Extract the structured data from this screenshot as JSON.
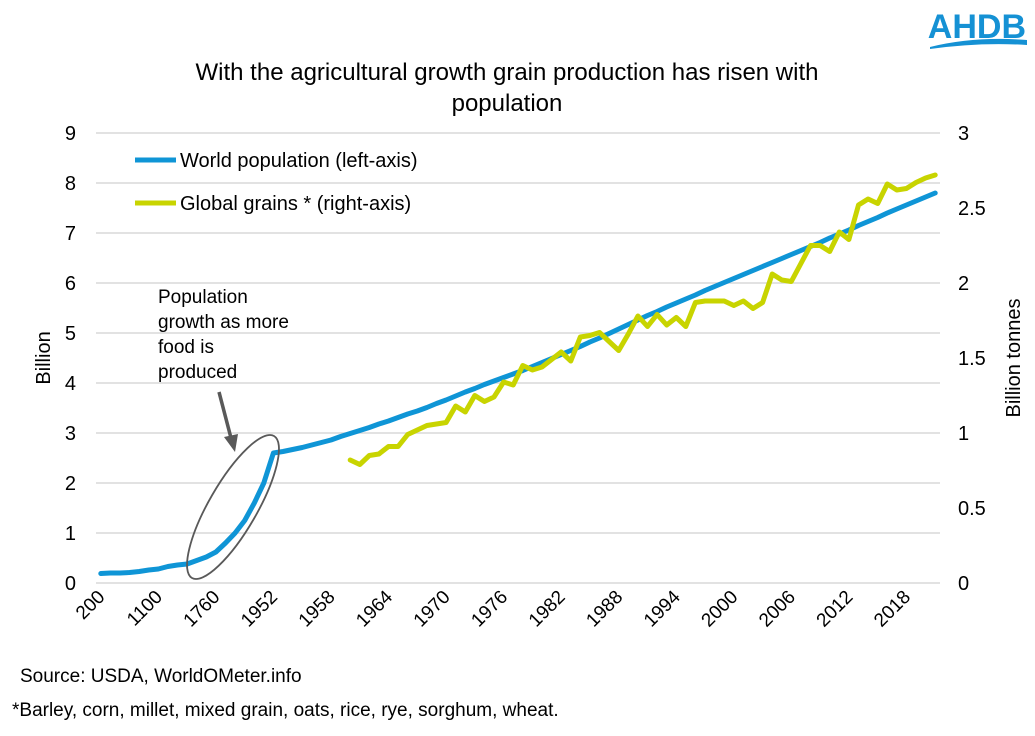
{
  "logo": {
    "text": "AHDB",
    "color": "#1591d4"
  },
  "chart_data": {
    "type": "line",
    "title": "With the agricultural growth grain production has risen with population",
    "title_lines": [
      "With the agricultural growth grain production has risen with",
      "population"
    ],
    "ylabel": "Billion",
    "y2label": "Billion tonnes",
    "ylim": [
      0,
      9
    ],
    "y2lim": [
      0,
      3
    ],
    "yticks": [
      "0",
      "1",
      "2",
      "3",
      "4",
      "5",
      "6",
      "7",
      "8",
      "9"
    ],
    "y2ticks": [
      "0",
      "0.5",
      "1",
      "1.5",
      "2",
      "2.5",
      "3"
    ],
    "grid": true,
    "legend_position": "top-left",
    "categories": [
      "200",
      "400",
      "500",
      "600",
      "700",
      "900",
      "1100",
      "1200",
      "1300",
      "1400",
      "1500",
      "1600",
      "1760",
      "1800",
      "1850",
      "1900",
      "1927",
      "1940",
      "1952",
      "1953",
      "1954",
      "1955",
      "1956",
      "1957",
      "1958",
      "1959",
      "1960",
      "1961",
      "1962",
      "1963",
      "1964",
      "1965",
      "1966",
      "1967",
      "1968",
      "1969",
      "1970",
      "1971",
      "1972",
      "1973",
      "1974",
      "1975",
      "1976",
      "1977",
      "1978",
      "1979",
      "1980",
      "1981",
      "1982",
      "1983",
      "1984",
      "1985",
      "1986",
      "1987",
      "1988",
      "1989",
      "1990",
      "1991",
      "1992",
      "1993",
      "1994",
      "1995",
      "1996",
      "1997",
      "1998",
      "1999",
      "2000",
      "2001",
      "2002",
      "2003",
      "2004",
      "2005",
      "2006",
      "2007",
      "2008",
      "2009",
      "2010",
      "2011",
      "2012",
      "2013",
      "2014",
      "2015",
      "2016",
      "2017",
      "2018",
      "2019",
      "2020",
      "2021"
    ],
    "xtick_labels": [
      "200",
      "1100",
      "1760",
      "1952",
      "1958",
      "1964",
      "1970",
      "1976",
      "1982",
      "1988",
      "1994",
      "2000",
      "2006",
      "2012",
      "2018"
    ],
    "xtick_every": 6,
    "series": [
      {
        "name": "World population (left-axis)",
        "axis": "left",
        "color": "#0f95d6",
        "values": [
          0.19,
          0.2,
          0.2,
          0.21,
          0.23,
          0.26,
          0.28,
          0.33,
          0.36,
          0.38,
          0.45,
          0.52,
          0.62,
          0.8,
          1.0,
          1.25,
          1.6,
          2.0,
          2.6,
          2.63,
          2.67,
          2.71,
          2.76,
          2.81,
          2.86,
          2.93,
          2.99,
          3.05,
          3.11,
          3.18,
          3.24,
          3.31,
          3.38,
          3.44,
          3.51,
          3.59,
          3.66,
          3.74,
          3.82,
          3.89,
          3.97,
          4.04,
          4.11,
          4.18,
          4.25,
          4.33,
          4.41,
          4.49,
          4.57,
          4.65,
          4.73,
          4.82,
          4.9,
          4.99,
          5.08,
          5.17,
          5.26,
          5.35,
          5.43,
          5.52,
          5.6,
          5.68,
          5.76,
          5.85,
          5.93,
          6.01,
          6.09,
          6.17,
          6.25,
          6.33,
          6.41,
          6.49,
          6.57,
          6.65,
          6.73,
          6.81,
          6.9,
          6.98,
          7.06,
          7.15,
          7.23,
          7.31,
          7.4,
          7.48,
          7.56,
          7.64,
          7.72,
          7.8
        ]
      },
      {
        "name": "Global grains * (right-axis)",
        "axis": "right",
        "color": "#c8d400",
        "values": [
          null,
          null,
          null,
          null,
          null,
          null,
          null,
          null,
          null,
          null,
          null,
          null,
          null,
          null,
          null,
          null,
          null,
          null,
          null,
          null,
          null,
          null,
          null,
          null,
          null,
          null,
          0.82,
          0.79,
          0.85,
          0.86,
          0.91,
          0.91,
          0.99,
          1.02,
          1.05,
          1.06,
          1.07,
          1.18,
          1.14,
          1.25,
          1.21,
          1.24,
          1.34,
          1.32,
          1.45,
          1.42,
          1.44,
          1.49,
          1.54,
          1.48,
          1.64,
          1.65,
          1.67,
          1.61,
          1.55,
          1.66,
          1.78,
          1.71,
          1.79,
          1.72,
          1.77,
          1.71,
          1.87,
          1.88,
          1.88,
          1.88,
          1.85,
          1.88,
          1.83,
          1.87,
          2.06,
          2.02,
          2.01,
          2.13,
          2.25,
          2.25,
          2.21,
          2.34,
          2.29,
          2.52,
          2.56,
          2.53,
          2.66,
          2.62,
          2.63,
          2.67,
          2.7,
          2.72
        ]
      }
    ],
    "annotation": {
      "lines": [
        "Population",
        "growth as more",
        "food is",
        "produced"
      ]
    },
    "source": "Source: USDA, WorldOMeter.info",
    "footnote": "*Barley, corn, millet, mixed grain, oats, rice, rye, sorghum, wheat."
  }
}
